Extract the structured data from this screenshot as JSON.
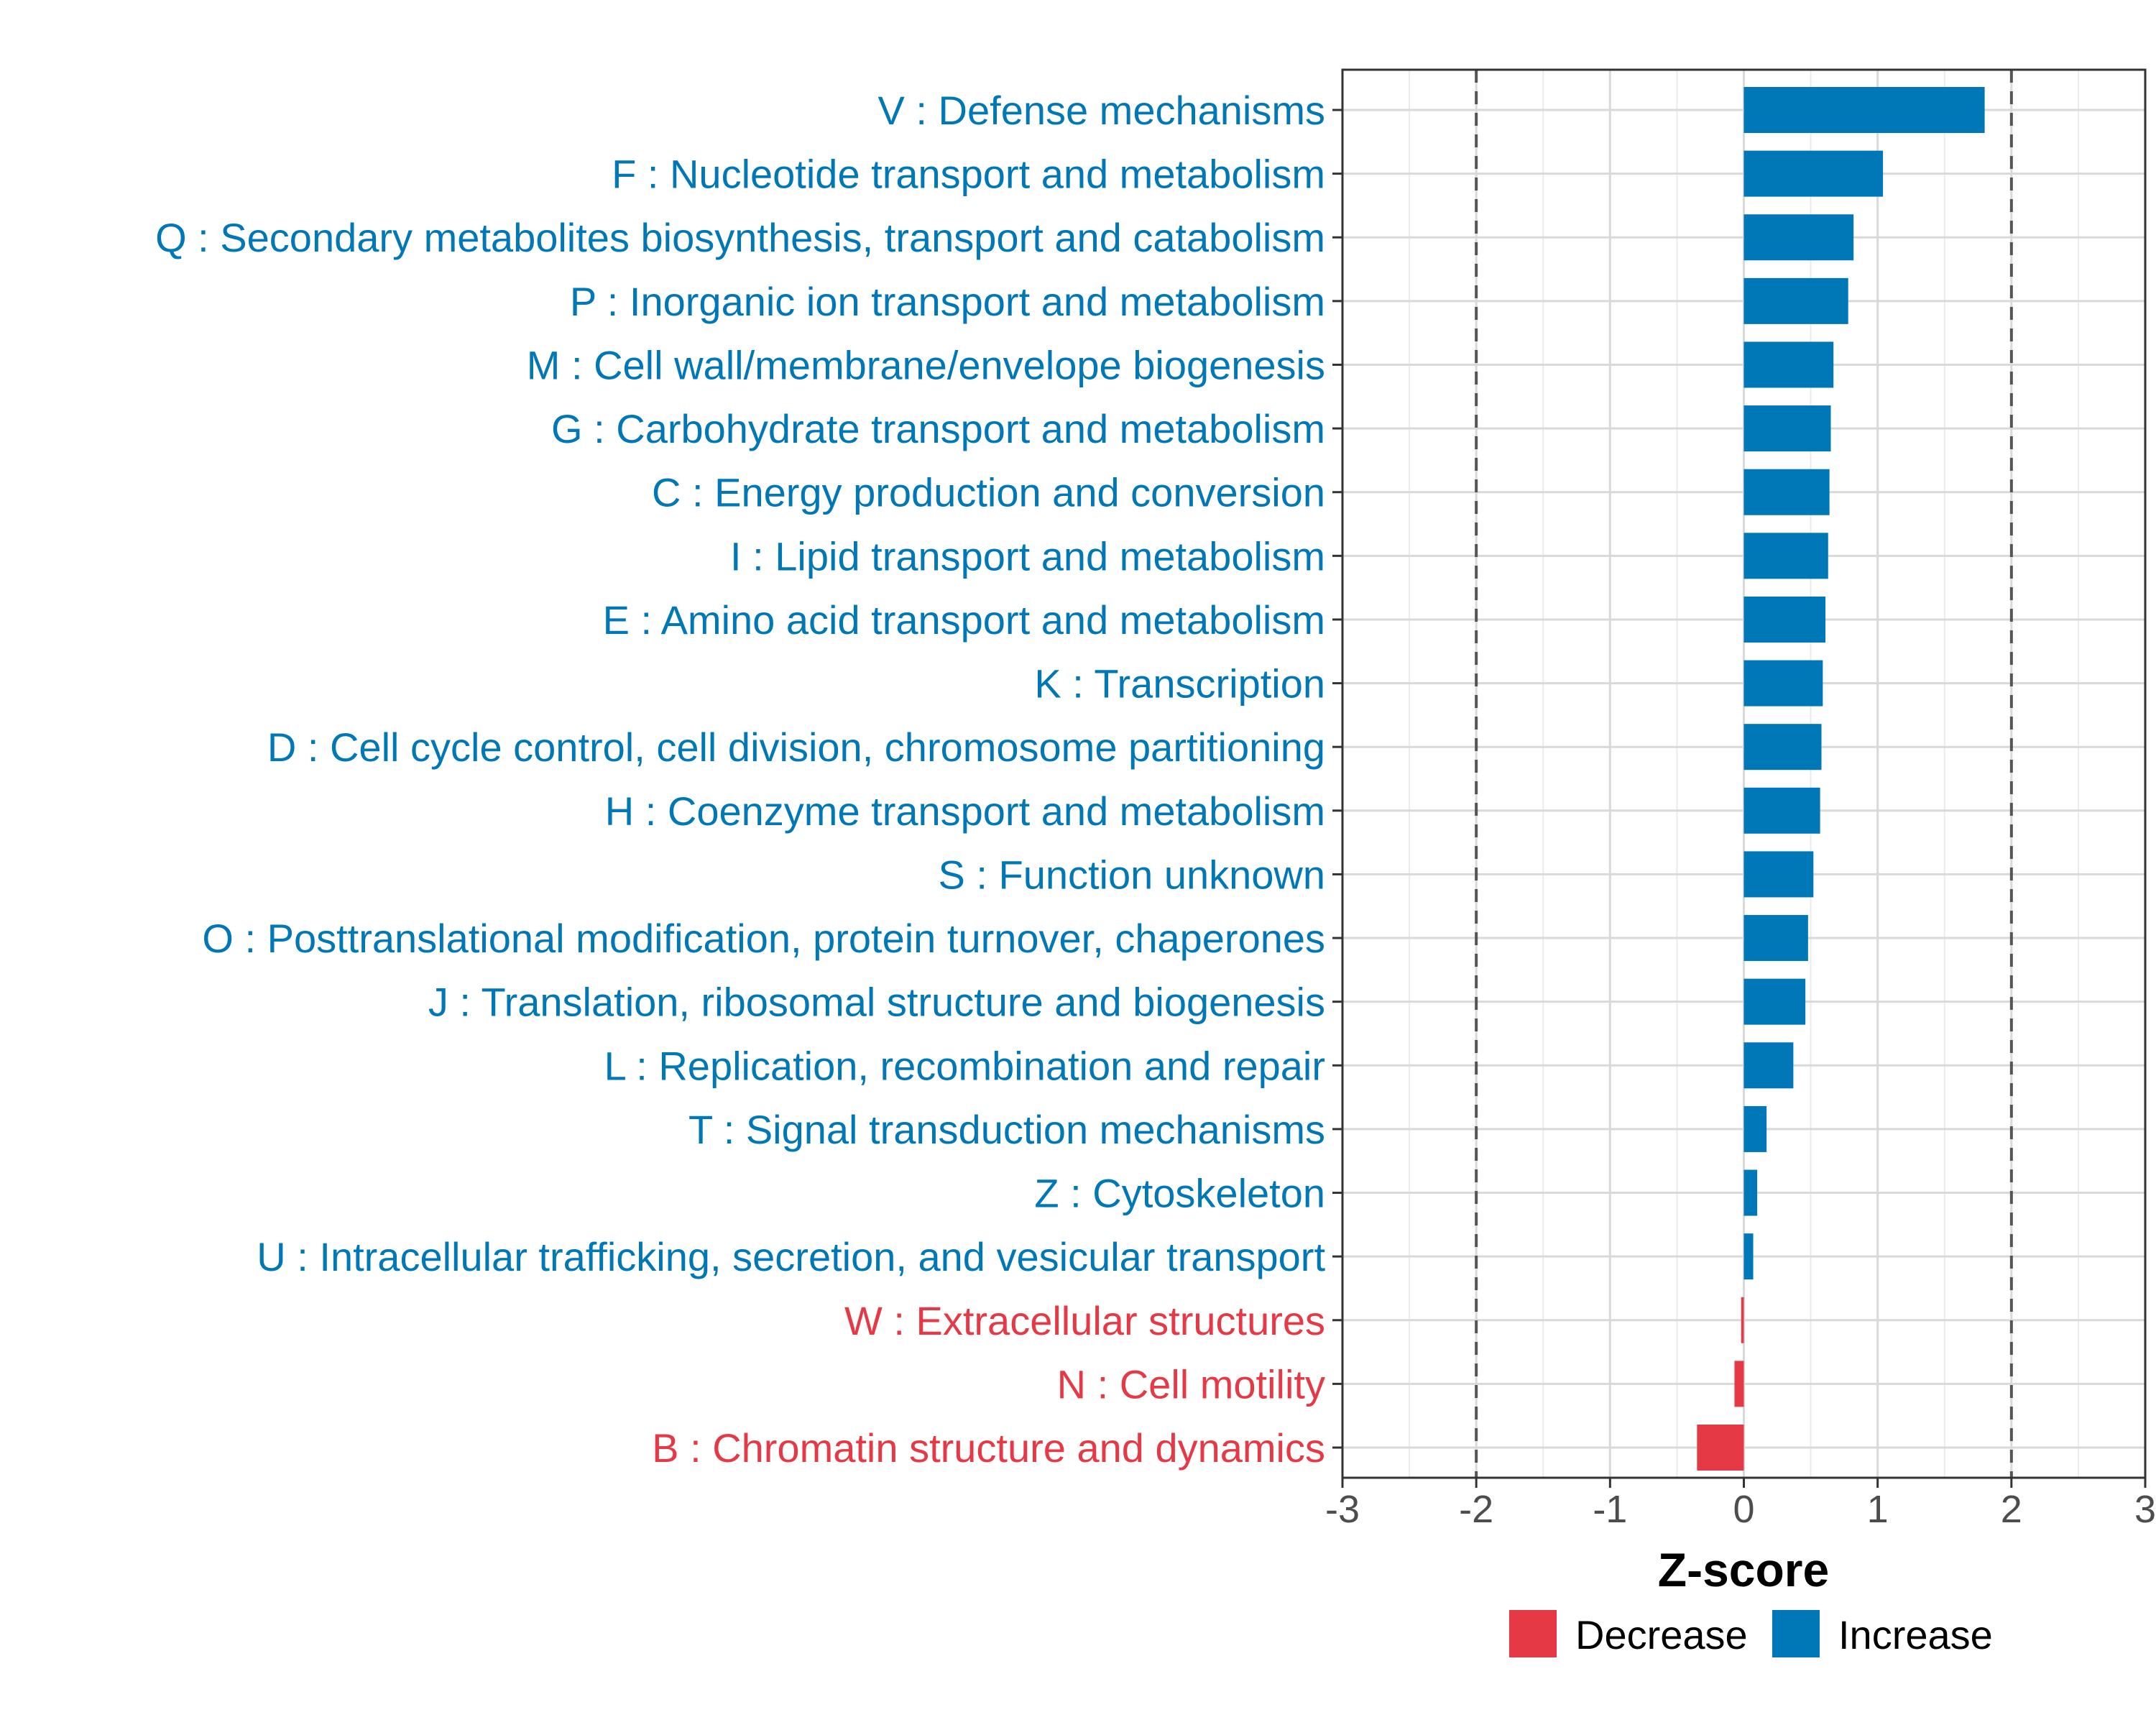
{
  "chart_data": {
    "type": "bar",
    "orientation": "horizontal",
    "title": "",
    "xlabel": "Z-score",
    "ylabel": "",
    "xlim": [
      -3,
      3
    ],
    "xticks": [
      -3,
      -2,
      -1,
      0,
      1,
      2,
      3
    ],
    "reference_lines": [
      -2,
      2
    ],
    "grid": true,
    "legend_position": "bottom",
    "colors": {
      "Decrease": "#e63946",
      "Increase": "#0077b6"
    },
    "legend": [
      {
        "label": "Decrease",
        "color": "#e63946"
      },
      {
        "label": "Increase",
        "color": "#0077b6"
      }
    ],
    "categories": [
      "V : Defense mechanisms",
      "F : Nucleotide transport and metabolism",
      "Q : Secondary metabolites biosynthesis, transport and catabolism",
      "P : Inorganic ion transport and metabolism",
      "M : Cell wall/membrane/envelope biogenesis",
      "G : Carbohydrate transport and metabolism",
      "C : Energy production and conversion",
      "I : Lipid transport and metabolism",
      "E : Amino acid transport and metabolism",
      "K : Transcription",
      "D : Cell cycle control, cell division, chromosome partitioning",
      "H : Coenzyme transport and metabolism",
      "S : Function unknown",
      "O : Posttranslational modification, protein turnover, chaperones",
      "J : Translation, ribosomal structure and biogenesis",
      "L : Replication, recombination and repair",
      "T : Signal transduction mechanisms",
      "Z : Cytoskeleton",
      "U : Intracellular trafficking, secretion, and vesicular transport",
      "W : Extracellular structures",
      "N : Cell motility",
      "B : Chromatin structure and dynamics"
    ],
    "values": [
      1.8,
      1.04,
      0.82,
      0.78,
      0.67,
      0.65,
      0.64,
      0.63,
      0.61,
      0.59,
      0.58,
      0.57,
      0.52,
      0.48,
      0.46,
      0.37,
      0.17,
      0.1,
      0.07,
      -0.02,
      -0.07,
      -0.35
    ],
    "direction": [
      "Increase",
      "Increase",
      "Increase",
      "Increase",
      "Increase",
      "Increase",
      "Increase",
      "Increase",
      "Increase",
      "Increase",
      "Increase",
      "Increase",
      "Increase",
      "Increase",
      "Increase",
      "Increase",
      "Increase",
      "Increase",
      "Increase",
      "Decrease",
      "Decrease",
      "Decrease"
    ]
  }
}
